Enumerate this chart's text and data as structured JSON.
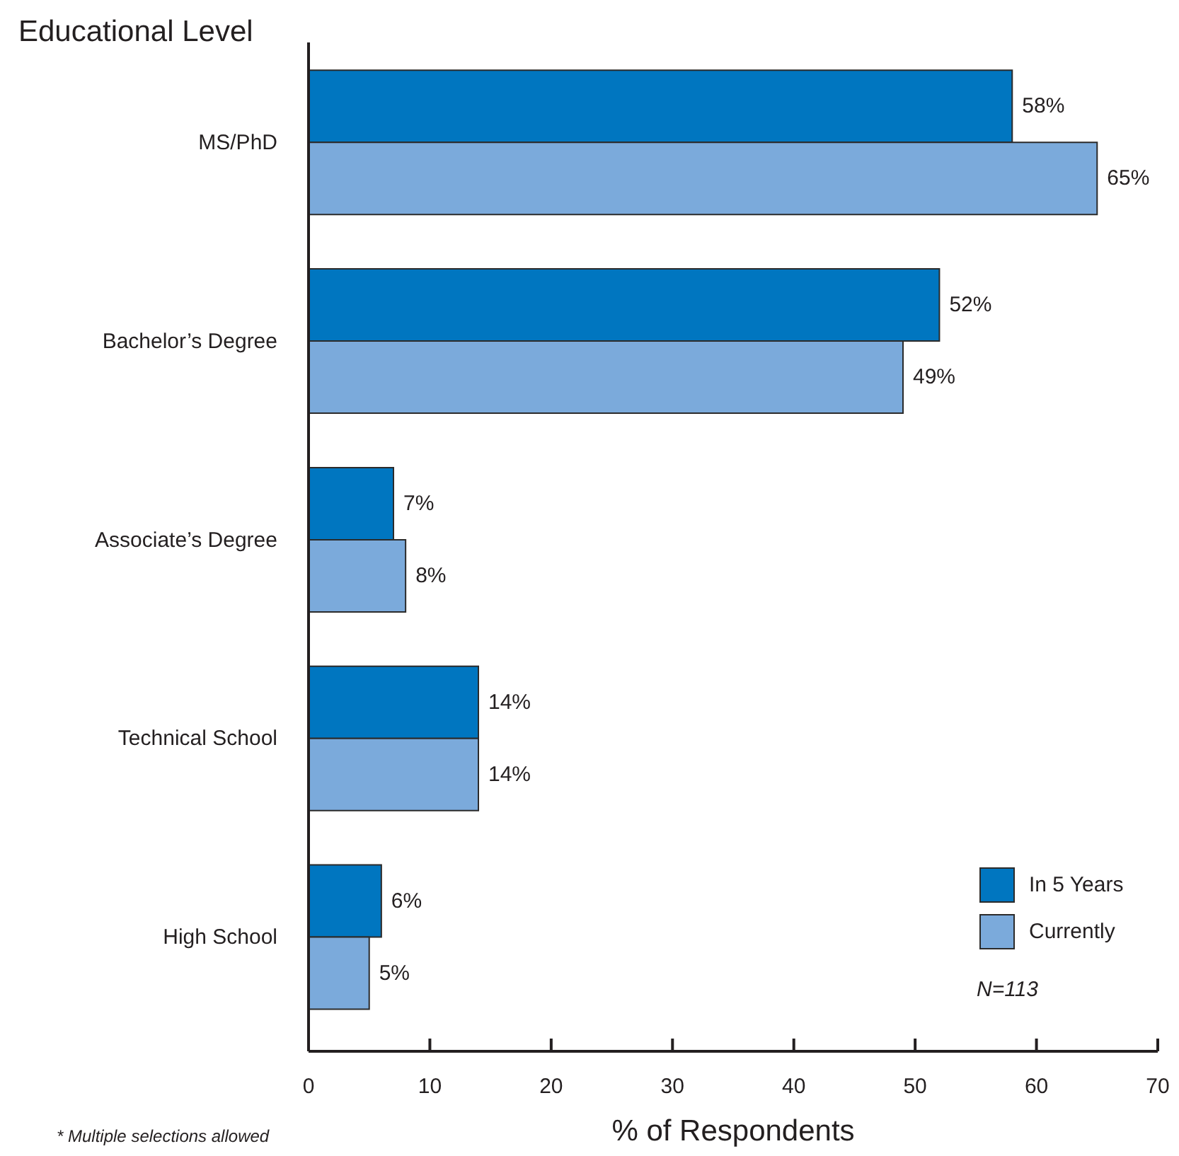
{
  "chart_data": {
    "type": "bar",
    "orientation": "horizontal",
    "ylabel": "Educational Level",
    "xlabel": "% of Respondents",
    "categories": [
      "MS/PhD",
      "Bachelor’s Degree",
      "Associate’s Degree",
      "Technical School",
      "High School"
    ],
    "series": [
      {
        "name": "In 5 Years",
        "color": "#0076c0",
        "values": [
          58,
          52,
          7,
          14,
          6
        ],
        "value_labels": [
          "58%",
          "52%",
          "7%",
          "14%",
          "6%"
        ]
      },
      {
        "name": "Currently",
        "color": "#7baadb",
        "values": [
          65,
          49,
          8,
          14,
          5
        ],
        "value_labels": [
          "65%",
          "49%",
          "8%",
          "14%",
          "5%"
        ]
      }
    ],
    "xlim": [
      0,
      70
    ],
    "xticks": [
      0,
      10,
      20,
      30,
      40,
      50,
      60,
      70
    ],
    "legend": "bottom right",
    "annotations": [
      "N=113",
      "* Multiple selections allowed"
    ]
  }
}
